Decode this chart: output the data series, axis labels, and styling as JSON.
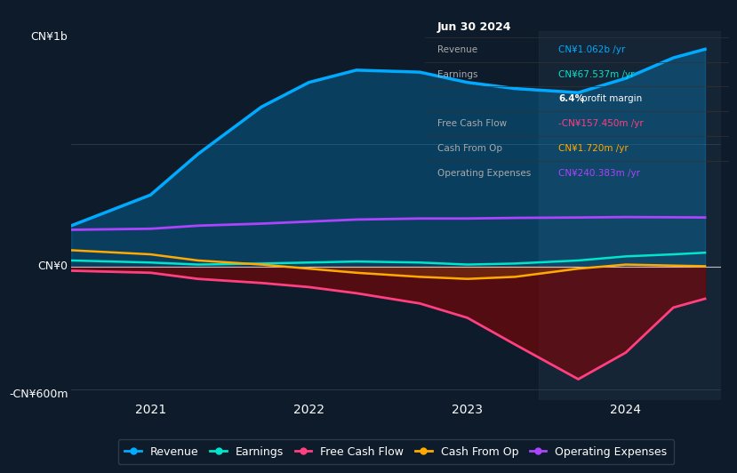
{
  "bg_color": "#0d1b2a",
  "plot_bg_color": "#0d1b2a",
  "ylabel_top": "CN¥1b",
  "ylabel_bottom": "-CN¥600m",
  "y0_label": "CN¥0",
  "xticks": [
    2021,
    2022,
    2023,
    2024
  ],
  "ylim": [
    -650,
    1150
  ],
  "colors": {
    "revenue": "#00aaff",
    "earnings": "#00e5cc",
    "free_cash_flow": "#ff4080",
    "cash_from_op": "#ffaa00",
    "operating_expenses": "#aa44ff"
  },
  "legend_items": [
    "Revenue",
    "Earnings",
    "Free Cash Flow",
    "Cash From Op",
    "Operating Expenses"
  ],
  "info_box_title": "Jun 30 2024",
  "revenue": {
    "x": [
      2020.5,
      2021.0,
      2021.3,
      2021.7,
      2022.0,
      2022.3,
      2022.7,
      2023.0,
      2023.3,
      2023.7,
      2024.0,
      2024.3,
      2024.5
    ],
    "y": [
      200,
      350,
      550,
      780,
      900,
      960,
      950,
      900,
      870,
      850,
      920,
      1020,
      1062
    ]
  },
  "earnings": {
    "x": [
      2020.5,
      2021.0,
      2021.3,
      2021.7,
      2022.0,
      2022.3,
      2022.7,
      2023.0,
      2023.3,
      2023.7,
      2024.0,
      2024.3,
      2024.5
    ],
    "y": [
      30,
      20,
      10,
      15,
      20,
      25,
      20,
      10,
      15,
      30,
      50,
      60,
      68
    ]
  },
  "free_cash_flow": {
    "x": [
      2020.5,
      2021.0,
      2021.3,
      2021.7,
      2022.0,
      2022.3,
      2022.7,
      2023.0,
      2023.3,
      2023.7,
      2024.0,
      2024.3,
      2024.5
    ],
    "y": [
      -20,
      -30,
      -60,
      -80,
      -100,
      -130,
      -180,
      -250,
      -380,
      -550,
      -420,
      -200,
      -157
    ]
  },
  "cash_from_op": {
    "x": [
      2020.5,
      2021.0,
      2021.3,
      2021.7,
      2022.0,
      2022.3,
      2022.7,
      2023.0,
      2023.3,
      2023.7,
      2024.0,
      2024.3,
      2024.5
    ],
    "y": [
      80,
      60,
      30,
      10,
      -10,
      -30,
      -50,
      -60,
      -50,
      -10,
      10,
      5,
      2
    ]
  },
  "operating_expenses": {
    "x": [
      2020.5,
      2021.0,
      2021.3,
      2021.7,
      2022.0,
      2022.3,
      2022.7,
      2023.0,
      2023.3,
      2023.7,
      2024.0,
      2024.3,
      2024.5
    ],
    "y": [
      180,
      185,
      200,
      210,
      220,
      230,
      235,
      235,
      238,
      240,
      242,
      241,
      240
    ]
  }
}
